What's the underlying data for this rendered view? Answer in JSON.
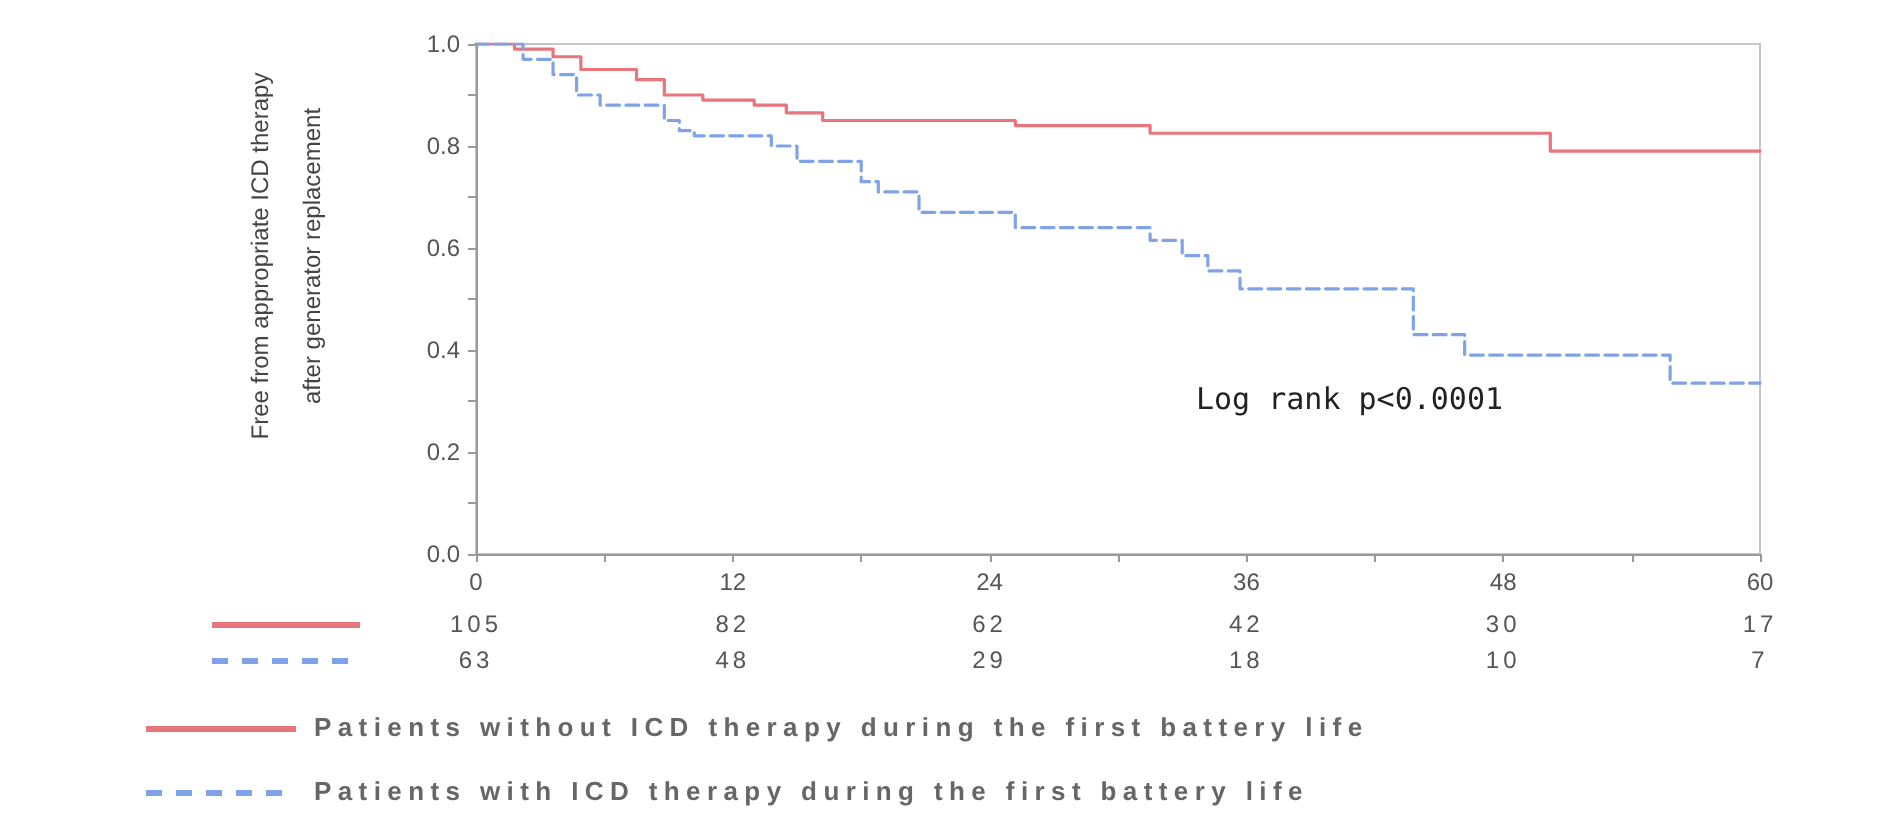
{
  "chart_data": [
    {
      "type": "step",
      "ylabel": "Free from appropriate ICD therapy after generator replacement",
      "annotations": [
        "Log rank p<0.0001"
      ],
      "xlim": [
        0,
        60
      ],
      "xticks": [
        0,
        {
          "value": 6,
          "label": null
        },
        12,
        {
          "value": 18,
          "label": null
        },
        24,
        {
          "value": 30,
          "label": null
        },
        36,
        {
          "value": 42,
          "label": null
        },
        48,
        {
          "value": 54,
          "label": null
        },
        60
      ],
      "ylim": [
        0,
        1
      ],
      "yticks": [
        {
          "value": 0,
          "label": "0.0"
        },
        {
          "value": 0.1,
          "label": null
        },
        {
          "value": 0.2,
          "label": "0.2"
        },
        {
          "value": 0.3,
          "label": null
        },
        {
          "value": 0.4,
          "label": "0.4"
        },
        {
          "value": 0.5,
          "label": null
        },
        {
          "value": 0.6,
          "label": "0.6"
        },
        {
          "value": 0.7,
          "label": null
        },
        {
          "value": 0.8,
          "label": "0.8"
        },
        {
          "value": 0.9,
          "label": null
        },
        {
          "value": 1,
          "label": "1.0"
        }
      ],
      "legend": "bottom left",
      "series": [
        {
          "name": "Patients without ICD therapy during the first battery life",
          "color": "#e8747c",
          "line_style": "solid",
          "x": [
            0,
            1.8,
            3.6,
            4.9,
            7.5,
            8.8,
            10.6,
            13,
            14.5,
            16.2,
            25.2,
            31.5,
            50.2,
            60
          ],
          "values": [
            1,
            0.99,
            0.975,
            0.95,
            0.93,
            0.9,
            0.89,
            0.88,
            0.865,
            0.85,
            0.84,
            0.825,
            0.79,
            0.79
          ]
        },
        {
          "name": "Patients with ICD therapy during the first battery life",
          "color": "#7fa3e6",
          "line_style": "dashed",
          "x": [
            0,
            2.2,
            3.6,
            4.7,
            5.8,
            8.8,
            9.5,
            10.2,
            13.8,
            15,
            18,
            18.8,
            20.7,
            25.2,
            31.5,
            33,
            34.2,
            35.7,
            43.8,
            46.2,
            55.8,
            60
          ],
          "values": [
            1,
            0.97,
            0.94,
            0.9,
            0.88,
            0.85,
            0.83,
            0.82,
            0.8,
            0.77,
            0.73,
            0.71,
            0.67,
            0.64,
            0.615,
            0.585,
            0.555,
            0.52,
            0.43,
            0.39,
            0.335,
            0.335
          ]
        }
      ]
    },
    {
      "type": "other",
      "annotations": [
        "105",
        "82",
        "62",
        "42",
        "30",
        "17",
        "63",
        "48",
        "29",
        "18",
        "10",
        "7"
      ]
    }
  ]
}
